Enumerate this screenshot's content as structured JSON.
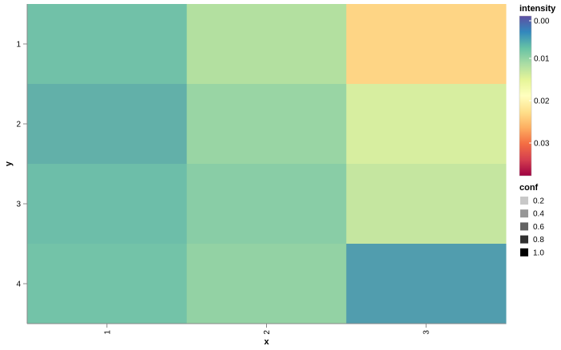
{
  "chart_data": {
    "type": "heatmap",
    "xlabel": "x",
    "ylabel": "y",
    "x_categories": [
      "1",
      "2",
      "3"
    ],
    "y_categories": [
      "1",
      "2",
      "3",
      "4"
    ],
    "cells": [
      {
        "x": "1",
        "y": "1",
        "intensity": 0.0105,
        "color": "#71c1a8"
      },
      {
        "x": "2",
        "y": "1",
        "intensity": 0.0145,
        "color": "#b3e0a0"
      },
      {
        "x": "3",
        "y": "1",
        "intensity": 0.02,
        "color": "#fed585"
      },
      {
        "x": "1",
        "y": "2",
        "intensity": 0.009,
        "color": "#62b0a9"
      },
      {
        "x": "2",
        "y": "2",
        "intensity": 0.013,
        "color": "#99d5a4"
      },
      {
        "x": "3",
        "y": "2",
        "intensity": 0.0165,
        "color": "#d7eea0"
      },
      {
        "x": "1",
        "y": "3",
        "intensity": 0.0105,
        "color": "#6dbea9"
      },
      {
        "x": "2",
        "y": "3",
        "intensity": 0.012,
        "color": "#89cda6"
      },
      {
        "x": "3",
        "y": "3",
        "intensity": 0.0155,
        "color": "#c5e6a0"
      },
      {
        "x": "1",
        "y": "4",
        "intensity": 0.011,
        "color": "#73c3a8"
      },
      {
        "x": "2",
        "y": "4",
        "intensity": 0.013,
        "color": "#93d2a4"
      },
      {
        "x": "3",
        "y": "4",
        "intensity": 0.007,
        "color": "#519dae"
      }
    ],
    "legend": {
      "color": {
        "title": "intensity",
        "ticks": [
          "0.00",
          "0.01",
          "0.02",
          "0.03"
        ],
        "stops": [
          "#5e4fa2",
          "#3288bd",
          "#66c2a5",
          "#abdda4",
          "#e6f598",
          "#ffffbf",
          "#fee08b",
          "#fdae61",
          "#f46d43",
          "#d53e4f",
          "#9e0142"
        ]
      },
      "opacity": {
        "title": "conf",
        "items": [
          {
            "label": "0.2",
            "color": "#c8c8c8"
          },
          {
            "label": "0.4",
            "color": "#979797"
          },
          {
            "label": "0.6",
            "color": "#636363"
          },
          {
            "label": "0.8",
            "color": "#313131"
          },
          {
            "label": "1.0",
            "color": "#000000"
          }
        ]
      }
    }
  }
}
